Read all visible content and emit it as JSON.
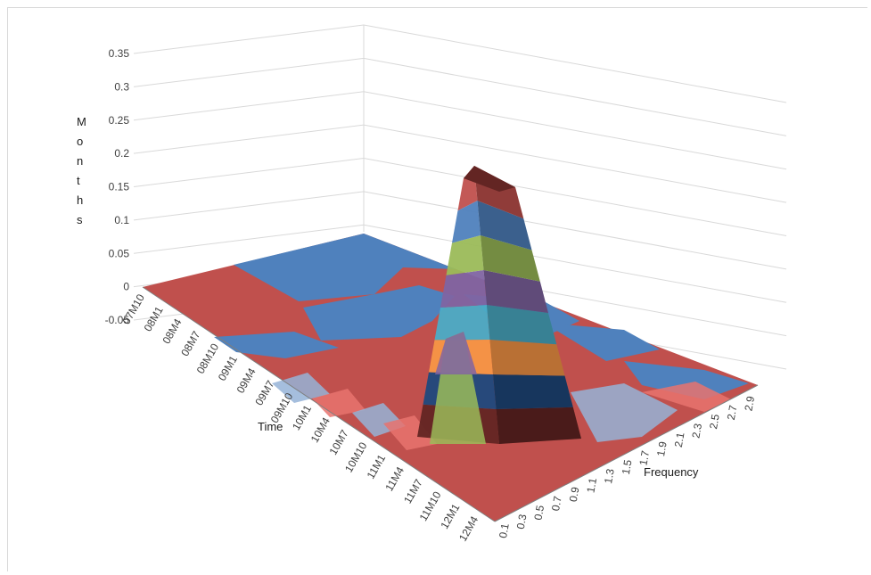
{
  "chart_data": {
    "type": "surface",
    "title": "",
    "zlabel": "Months",
    "xlabel": "Time",
    "ylabel": "Frequency",
    "zlim": [
      -0.05,
      0.35
    ],
    "z_ticks": [
      "0.35",
      "0.3",
      "0.25",
      "0.2",
      "0.15",
      "0.1",
      "0.05",
      "0",
      "-0.05"
    ],
    "time_ticks": [
      "07M10",
      "08M1",
      "08M4",
      "08M7",
      "08M10",
      "09M1",
      "09M4",
      "09M7",
      "09M10",
      "10M1",
      "10M4",
      "10M7",
      "10M10",
      "11M1",
      "11M4",
      "11M7",
      "11M10",
      "12M1",
      "12M4"
    ],
    "frequency_ticks": [
      "0.1",
      "0.3",
      "0.5",
      "0.7",
      "0.9",
      "1.1",
      "1.3",
      "1.5",
      "1.7",
      "1.9",
      "2.1",
      "2.3",
      "2.5",
      "2.7",
      "2.9"
    ],
    "band_colors": [
      "#c0504d",
      "#4f81bd",
      "#9bbb59",
      "#8064a2",
      "#4bacc6",
      "#f79646",
      "#1f497d",
      "#632523"
    ],
    "peak": {
      "time": "12M4",
      "frequency": "0.9",
      "value": 0.32
    }
  }
}
